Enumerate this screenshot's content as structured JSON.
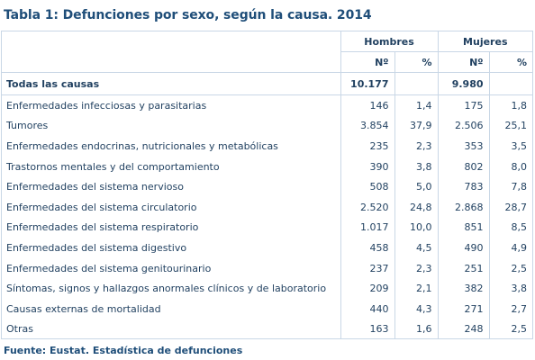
{
  "title": "Tabla 1: Defunciones por sexo, según la causa. 2014",
  "headers": {
    "group_men": "Hombres",
    "group_women": "Mujeres",
    "count": "Nº",
    "percent": "%"
  },
  "total": {
    "label": "Todas las causas",
    "men_count": "10.177",
    "men_pct": "",
    "women_count": "9.980",
    "women_pct": ""
  },
  "rows": [
    {
      "label": "Enfermedades infecciosas y parasitarias",
      "men_count": "146",
      "men_pct": "1,4",
      "women_count": "175",
      "women_pct": "1,8"
    },
    {
      "label": "Tumores",
      "men_count": "3.854",
      "men_pct": "37,9",
      "women_count": "2.506",
      "women_pct": "25,1"
    },
    {
      "label": "Enfermedades endocrinas, nutricionales y metabólicas",
      "men_count": "235",
      "men_pct": "2,3",
      "women_count": "353",
      "women_pct": "3,5"
    },
    {
      "label": "Trastornos mentales y del comportamiento",
      "men_count": "390",
      "men_pct": "3,8",
      "women_count": "802",
      "women_pct": "8,0"
    },
    {
      "label": "Enfermedades del sistema nervioso",
      "men_count": "508",
      "men_pct": "5,0",
      "women_count": "783",
      "women_pct": "7,8"
    },
    {
      "label": "Enfermedades del sistema circulatorio",
      "men_count": "2.520",
      "men_pct": "24,8",
      "women_count": "2.868",
      "women_pct": "28,7"
    },
    {
      "label": "Enfermedades del sistema respiratorio",
      "men_count": "1.017",
      "men_pct": "10,0",
      "women_count": "851",
      "women_pct": "8,5"
    },
    {
      "label": "Enfermedades del sistema digestivo",
      "men_count": "458",
      "men_pct": "4,5",
      "women_count": "490",
      "women_pct": "4,9"
    },
    {
      "label": "Enfermedades del sistema genitourinario",
      "men_count": "237",
      "men_pct": "2,3",
      "women_count": "251",
      "women_pct": "2,5"
    },
    {
      "label": "Síntomas, signos y hallazgos anormales clínicos y de laboratorio",
      "men_count": "209",
      "men_pct": "2,1",
      "women_count": "382",
      "women_pct": "3,8"
    },
    {
      "label": "Causas externas de mortalidad",
      "men_count": "440",
      "men_pct": "4,3",
      "women_count": "271",
      "women_pct": "2,7"
    },
    {
      "label": "Otras",
      "men_count": "163",
      "men_pct": "1,6",
      "women_count": "248",
      "women_pct": "2,5"
    }
  ],
  "source": "Fuente: Eustat. Estadística de defunciones"
}
